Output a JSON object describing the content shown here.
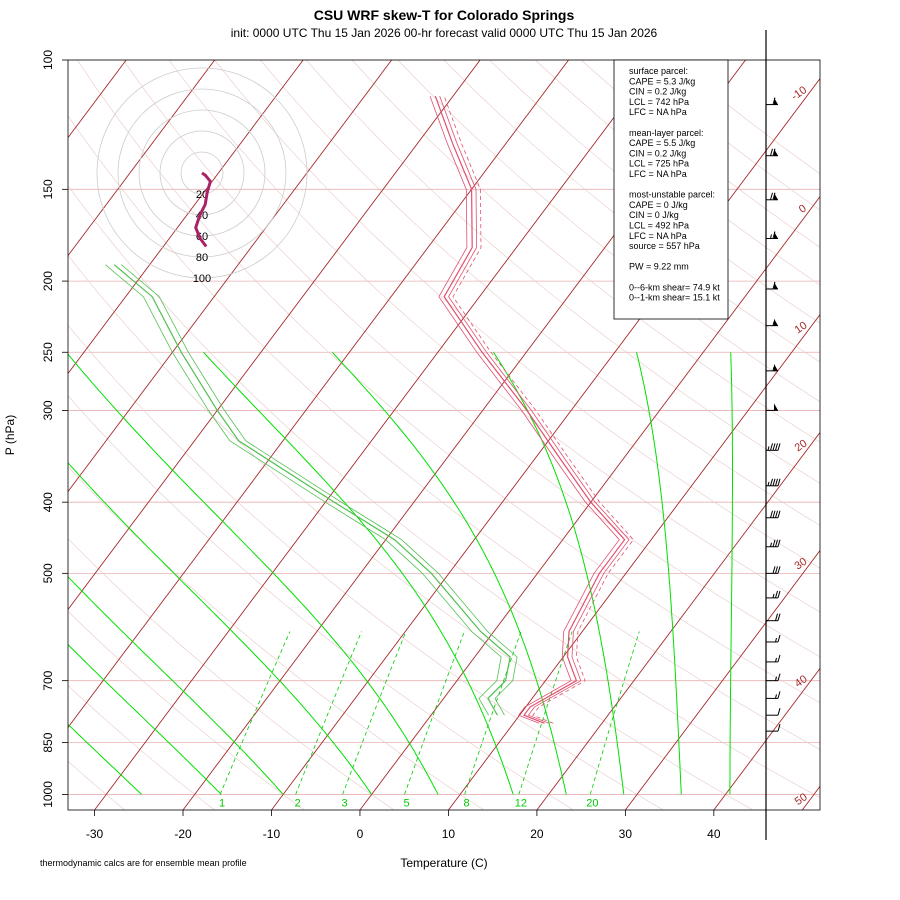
{
  "title": "CSU WRF skew-T for Colorado Springs",
  "subtitle": "init: 0000 UTC Thu 15 Jan 2026     00-hr forecast valid 0000 UTC Thu 15 Jan 2026",
  "xlabel": "Temperature (C)",
  "ylabel": "P (hPa)",
  "footnote": "thermodynamic calcs are for ensemble mean profile",
  "info_box": {
    "lines": [
      "surface parcel:",
      "CAPE = 5.3 J/kg",
      "CIN = 0.2 J/kg",
      "LCL = 742 hPa",
      "LFC = NA hPa",
      "",
      "mean-layer parcel:",
      "CAPE = 5.5 J/kg",
      "CIN = 0.2 J/kg",
      "LCL = 725 hPa",
      "LFC = NA hPa",
      "",
      "most-unstable parcel:",
      "CAPE = 0 J/kg",
      "CIN = 0 J/kg",
      "LCL = 492 hPa",
      "LFC = NA hPa",
      "source = 557 hPa",
      "",
      "PW =  9.22 mm",
      "",
      "0--6-km shear= 74.9 kt",
      "0--1-km shear= 15.1 kt"
    ]
  },
  "colors": {
    "isotherm": "#a52a2a",
    "isobar": "#e8b0b0",
    "dry_adiabat": "#e8c8c8",
    "moist_adiabat": "#00e000",
    "mixing_ratio": "#00cc00",
    "temperature": "#e05070",
    "dewpoint": "#50c050",
    "hodograph": "#aa2266",
    "hodograph_ring": "#cccccc",
    "wind_barb": "#000000"
  },
  "chart_data": {
    "type": "skew-t",
    "xlim": [
      -33,
      52
    ],
    "ylim": [
      1050,
      100
    ],
    "x_ticks": [
      -30,
      -20,
      -10,
      0,
      10,
      20,
      30,
      40
    ],
    "y_ticks": [
      100,
      150,
      200,
      250,
      300,
      400,
      500,
      700,
      850,
      1000
    ],
    "isotherm_labels": [
      -10,
      0,
      10,
      20,
      30,
      40,
      50
    ],
    "mixing_ratio_labels": [
      "1",
      "2",
      "3",
      "5",
      "8",
      "12",
      "20"
    ],
    "hodograph_ring_labels": [
      "20",
      "40",
      "60",
      "80",
      "100"
    ],
    "temperature_profile": [
      {
        "p": 800,
        "t": 13.5
      },
      {
        "p": 780,
        "t": 10.5
      },
      {
        "p": 760,
        "t": 10.5
      },
      {
        "p": 700,
        "t": 13.5
      },
      {
        "p": 650,
        "t": 10.5
      },
      {
        "p": 600,
        "t": 8.5
      },
      {
        "p": 500,
        "t": 7.0
      },
      {
        "p": 450,
        "t": 7.0
      },
      {
        "p": 400,
        "t": 0.0
      },
      {
        "p": 350,
        "t": -7.0
      },
      {
        "p": 300,
        "t": -15.0
      },
      {
        "p": 250,
        "t": -25.0
      },
      {
        "p": 210,
        "t": -34.0
      },
      {
        "p": 180,
        "t": -35.0
      },
      {
        "p": 150,
        "t": -40.0
      },
      {
        "p": 130,
        "t": -46.0
      },
      {
        "p": 112,
        "t": -52.0
      }
    ],
    "dewpoint_profile": [
      {
        "p": 780,
        "t": 7.5
      },
      {
        "p": 740,
        "t": 5.0
      },
      {
        "p": 700,
        "t": 5.5
      },
      {
        "p": 650,
        "t": 4.0
      },
      {
        "p": 600,
        "t": -1.5
      },
      {
        "p": 500,
        "t": -12.0
      },
      {
        "p": 450,
        "t": -19.0
      },
      {
        "p": 400,
        "t": -29.0
      },
      {
        "p": 330,
        "t": -45.0
      },
      {
        "p": 300,
        "t": -50.0
      },
      {
        "p": 250,
        "t": -59.0
      },
      {
        "p": 210,
        "t": -67.0
      },
      {
        "p": 190,
        "t": -74.0
      }
    ],
    "hodograph_trace": [
      {
        "u": 0,
        "v": 0
      },
      {
        "u": 3,
        "v": -2
      },
      {
        "u": 8,
        "v": -8
      },
      {
        "u": 5,
        "v": -18
      },
      {
        "u": 3,
        "v": -30
      },
      {
        "u": -2,
        "v": -40
      },
      {
        "u": -6,
        "v": -52
      },
      {
        "u": -2,
        "v": -62
      },
      {
        "u": 4,
        "v": -70
      }
    ],
    "wind_barbs": [
      {
        "p": 115,
        "spd": 60,
        "dir": 270
      },
      {
        "p": 135,
        "spd": 70,
        "dir": 270
      },
      {
        "p": 155,
        "spd": 70,
        "dir": 270
      },
      {
        "p": 175,
        "spd": 65,
        "dir": 270
      },
      {
        "p": 205,
        "spd": 60,
        "dir": 270
      },
      {
        "p": 230,
        "spd": 55,
        "dir": 270
      },
      {
        "p": 265,
        "spd": 55,
        "dir": 270
      },
      {
        "p": 300,
        "spd": 50,
        "dir": 270
      },
      {
        "p": 340,
        "spd": 45,
        "dir": 270
      },
      {
        "p": 380,
        "spd": 45,
        "dir": 270
      },
      {
        "p": 420,
        "spd": 40,
        "dir": 270
      },
      {
        "p": 460,
        "spd": 35,
        "dir": 270
      },
      {
        "p": 500,
        "spd": 30,
        "dir": 270
      },
      {
        "p": 540,
        "spd": 25,
        "dir": 270
      },
      {
        "p": 580,
        "spd": 20,
        "dir": 270
      },
      {
        "p": 620,
        "spd": 15,
        "dir": 260
      },
      {
        "p": 660,
        "spd": 15,
        "dir": 250
      },
      {
        "p": 700,
        "spd": 15,
        "dir": 240
      },
      {
        "p": 740,
        "spd": 15,
        "dir": 230
      },
      {
        "p": 780,
        "spd": 10,
        "dir": 220
      },
      {
        "p": 820,
        "spd": 10,
        "dir": 200
      }
    ]
  }
}
